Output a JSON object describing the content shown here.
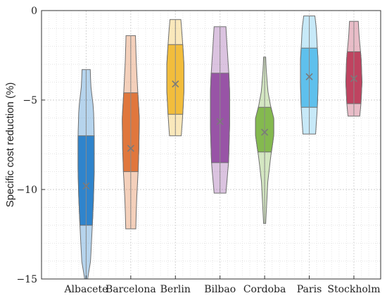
{
  "chart_data": {
    "type": "violin",
    "title": "",
    "xlabel": "",
    "ylabel": "Specific cost reduction (%)",
    "ylim": [
      -15,
      0
    ],
    "yticks": [
      0,
      -5,
      -10,
      -15
    ],
    "grid": true,
    "legend": "none",
    "categories": [
      "Albacete",
      "Barcelona",
      "Berlin",
      "Bilbao",
      "Cordoba",
      "Paris",
      "Stockholm"
    ],
    "series": [
      {
        "category": "Albacete",
        "color": "#2f84cc",
        "min": -15.0,
        "q1": -12.0,
        "mean": -9.8,
        "q3": -7.0,
        "max": -3.3,
        "profile": [
          [
            -15.0,
            0.1
          ],
          [
            -14.0,
            0.3
          ],
          [
            -12.0,
            0.42
          ],
          [
            -10.5,
            0.5
          ],
          [
            -9.0,
            0.55
          ],
          [
            -7.0,
            0.55
          ],
          [
            -5.5,
            0.5
          ],
          [
            -4.2,
            0.32
          ],
          [
            -3.3,
            0.28
          ]
        ]
      },
      {
        "category": "Barcelona",
        "color": "#e0773d",
        "min": -12.2,
        "q1": -9.0,
        "mean": -7.7,
        "q3": -4.6,
        "max": -1.4,
        "profile": [
          [
            -12.2,
            0.34
          ],
          [
            -10.5,
            0.4
          ],
          [
            -9.0,
            0.5
          ],
          [
            -7.7,
            0.55
          ],
          [
            -6.0,
            0.58
          ],
          [
            -4.6,
            0.48
          ],
          [
            -3.0,
            0.38
          ],
          [
            -1.4,
            0.32
          ]
        ]
      },
      {
        "category": "Berlin",
        "color": "#f2bd3c",
        "min": -7.0,
        "q1": -5.8,
        "mean": -4.1,
        "q3": -1.9,
        "max": -0.5,
        "profile": [
          [
            -7.0,
            0.4
          ],
          [
            -5.8,
            0.5
          ],
          [
            -4.5,
            0.58
          ],
          [
            -3.0,
            0.58
          ],
          [
            -1.9,
            0.5
          ],
          [
            -1.0,
            0.42
          ],
          [
            -0.5,
            0.37
          ]
        ]
      },
      {
        "category": "Bilbao",
        "color": "#9854a6",
        "min": -10.2,
        "q1": -8.5,
        "mean": -6.2,
        "q3": -3.5,
        "max": -0.9,
        "profile": [
          [
            -10.2,
            0.4
          ],
          [
            -8.5,
            0.58
          ],
          [
            -6.5,
            0.65
          ],
          [
            -4.5,
            0.65
          ],
          [
            -3.5,
            0.6
          ],
          [
            -2.0,
            0.48
          ],
          [
            -0.9,
            0.4
          ]
        ]
      },
      {
        "category": "Cordoba",
        "color": "#84b94f",
        "min": -11.9,
        "q1": -7.9,
        "mean": -6.8,
        "q3": -5.4,
        "max": -2.6,
        "profile": [
          [
            -11.9,
            0.07
          ],
          [
            -9.5,
            0.22
          ],
          [
            -8.0,
            0.44
          ],
          [
            -7.0,
            0.62
          ],
          [
            -6.0,
            0.62
          ],
          [
            -5.4,
            0.42
          ],
          [
            -4.5,
            0.22
          ],
          [
            -3.2,
            0.1
          ],
          [
            -2.6,
            0.07
          ]
        ]
      },
      {
        "category": "Paris",
        "color": "#5fc0ec",
        "min": -6.9,
        "q1": -5.4,
        "mean": -3.7,
        "q3": -2.1,
        "max": -0.3,
        "profile": [
          [
            -6.9,
            0.43
          ],
          [
            -5.4,
            0.55
          ],
          [
            -4.0,
            0.6
          ],
          [
            -2.8,
            0.6
          ],
          [
            -2.1,
            0.55
          ],
          [
            -1.0,
            0.48
          ],
          [
            -0.3,
            0.38
          ]
        ]
      },
      {
        "category": "Stockholm",
        "color": "#bf4360",
        "min": -5.9,
        "q1": -5.2,
        "mean": -3.8,
        "q3": -2.3,
        "max": -0.6,
        "profile": [
          [
            -5.9,
            0.4
          ],
          [
            -5.2,
            0.48
          ],
          [
            -4.0,
            0.55
          ],
          [
            -2.8,
            0.5
          ],
          [
            -2.3,
            0.45
          ],
          [
            -1.4,
            0.35
          ],
          [
            -0.6,
            0.3
          ]
        ]
      }
    ]
  }
}
